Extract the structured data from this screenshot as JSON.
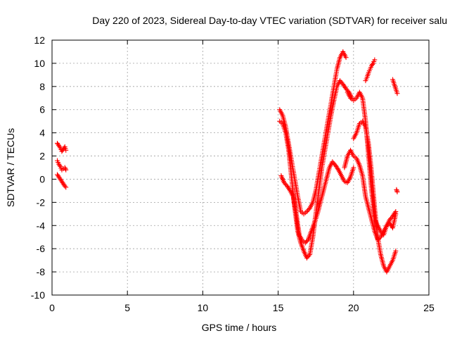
{
  "chart_data": {
    "type": "scatter",
    "title": "Day 220 of 2023, Sidereal Day-to-day VTEC variation (SDTVAR) for receiver salu",
    "xlabel": "GPS time / hours",
    "ylabel": "SDTVAR / TECUs",
    "xlim": [
      0,
      25
    ],
    "ylim": [
      -10,
      12
    ],
    "xticks": [
      0,
      5,
      10,
      15,
      20,
      25
    ],
    "yticks": [
      -10,
      -8,
      -6,
      -4,
      -2,
      0,
      2,
      4,
      6,
      8,
      10,
      12
    ],
    "grid": true,
    "marker": "+",
    "colors": {
      "series": "#ff0000",
      "grid": "#a0a0a0",
      "axis": "#000000"
    },
    "series": [
      {
        "track": "a",
        "x": [
          0.35,
          0.45,
          0.55,
          0.65,
          0.75,
          0.85,
          0.92
        ],
        "y": [
          3.1,
          2.9,
          2.7,
          2.4,
          2.6,
          2.8,
          2.5
        ]
      },
      {
        "track": "b",
        "x": [
          0.35,
          0.45,
          0.55,
          0.65,
          0.75,
          0.85,
          0.92
        ],
        "y": [
          1.6,
          1.3,
          1.1,
          0.8,
          0.9,
          1.0,
          0.8
        ]
      },
      {
        "track": "c",
        "x": [
          0.35,
          0.45,
          0.55,
          0.65,
          0.75,
          0.85,
          0.92
        ],
        "y": [
          0.4,
          0.2,
          0.0,
          -0.2,
          -0.4,
          -0.6,
          -0.7
        ]
      },
      {
        "track": "d",
        "x": [
          15.1,
          15.3,
          15.5,
          15.7,
          15.9,
          16.1,
          16.3,
          16.5,
          16.7,
          16.9,
          17.1,
          17.3,
          17.5,
          17.7,
          17.9,
          18.1,
          18.3,
          18.5,
          18.7,
          18.9,
          19.1,
          19.3,
          19.5
        ],
        "y": [
          6.0,
          5.5,
          4.5,
          3.0,
          1.5,
          0.0,
          -1.5,
          -2.8,
          -3.0,
          -2.8,
          -2.5,
          -2.0,
          -1.0,
          0.5,
          2.0,
          3.5,
          5.0,
          6.5,
          8.0,
          9.5,
          10.5,
          11.0,
          10.5
        ]
      },
      {
        "track": "e",
        "x": [
          15.1,
          15.3,
          15.5,
          15.7,
          15.9,
          16.1,
          16.3,
          16.5,
          16.7,
          16.9,
          17.1,
          17.3,
          17.5,
          17.7,
          17.9,
          18.1,
          18.3,
          18.5,
          18.7,
          18.9,
          19.1,
          19.3,
          19.5,
          19.7,
          19.9
        ],
        "y": [
          5.0,
          4.8,
          4.0,
          2.5,
          0.0,
          -2.5,
          -4.5,
          -5.5,
          -6.2,
          -6.8,
          -6.5,
          -5.0,
          -3.0,
          -1.0,
          1.0,
          2.5,
          4.0,
          5.5,
          6.8,
          8.0,
          8.5,
          8.2,
          7.8,
          7.5,
          7.0
        ]
      },
      {
        "track": "f",
        "x": [
          15.2,
          15.4,
          15.6,
          15.8,
          16.0,
          16.2,
          16.4,
          16.6,
          16.8,
          17.0,
          17.2,
          17.4,
          17.6,
          17.8,
          18.0,
          18.2,
          18.4,
          18.6,
          18.8,
          19.0,
          19.2,
          19.4,
          19.6,
          19.8,
          20.0
        ],
        "y": [
          0.3,
          -0.3,
          -0.6,
          -1.0,
          -1.5,
          -3.0,
          -4.8,
          -5.3,
          -5.5,
          -5.2,
          -4.5,
          -3.8,
          -3.0,
          -2.0,
          -1.0,
          0.0,
          1.0,
          1.5,
          1.2,
          0.8,
          0.3,
          -0.2,
          -0.3,
          0.2,
          1.0
        ]
      },
      {
        "track": "g",
        "x": [
          19.6,
          19.8,
          20.0,
          20.2,
          20.4,
          20.6,
          20.8,
          21.0,
          21.2,
          21.4,
          21.6,
          21.8,
          22.0,
          22.2,
          22.4,
          22.6,
          22.8
        ],
        "y": [
          7.5,
          7.0,
          6.8,
          7.0,
          7.5,
          7.0,
          5.0,
          2.0,
          -1.0,
          -3.5,
          -4.0,
          -4.5,
          -4.8,
          -4.0,
          -3.8,
          -4.2,
          -3.0
        ]
      },
      {
        "track": "h",
        "x": [
          20.0,
          20.2,
          20.4,
          20.6,
          20.8,
          21.0,
          21.2,
          21.4,
          21.6,
          21.8,
          22.0,
          22.2,
          22.4,
          22.6,
          22.8
        ],
        "y": [
          3.5,
          4.0,
          4.8,
          5.0,
          4.5,
          3.0,
          0.5,
          -2.5,
          -5.0,
          -6.5,
          -7.5,
          -8.0,
          -7.5,
          -7.0,
          -6.2
        ]
      },
      {
        "track": "i",
        "x": [
          19.4,
          19.6,
          19.8,
          20.0,
          20.2,
          20.4,
          20.6,
          20.8,
          21.0,
          21.2,
          21.4,
          21.6,
          21.8,
          22.0,
          22.2,
          22.4,
          22.6,
          22.8
        ],
        "y": [
          1.0,
          2.0,
          2.5,
          2.0,
          1.8,
          1.2,
          0.3,
          -1.5,
          -2.5,
          -3.5,
          -4.5,
          -5.2,
          -5.0,
          -4.5,
          -4.0,
          -3.5,
          -3.2,
          -2.8
        ]
      },
      {
        "track": "j",
        "x": [
          20.8,
          20.9,
          21.0,
          21.1,
          21.2,
          21.3,
          21.4
        ],
        "y": [
          8.5,
          8.8,
          9.2,
          9.5,
          9.8,
          10.0,
          10.3
        ]
      },
      {
        "track": "k",
        "x": [
          22.6,
          22.7,
          22.8,
          22.9
        ],
        "y": [
          8.6,
          8.2,
          7.8,
          7.4
        ]
      },
      {
        "track": "l",
        "x": [
          22.85,
          22.9
        ],
        "y": [
          -0.9,
          -1.1
        ]
      }
    ]
  }
}
